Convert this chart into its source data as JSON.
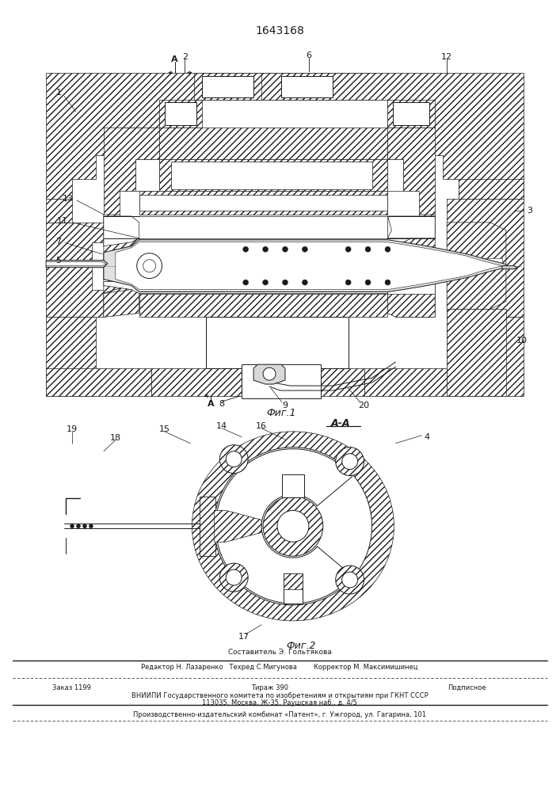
{
  "patent_number": "1643168",
  "bg_color": "#ffffff",
  "lc": "#1a1a1a",
  "fig1_label": "Фиг.1",
  "fig2_label": "Фиг.2",
  "section_label": "А-А",
  "footer": [
    "Составитель Э. Гольтякова",
    "Редактор Н. Лазаренко   Техред С.Мигунова        Корректор М. Максимишинец",
    "Заказ 1199",
    "Тираж 390",
    "Подписное",
    "ВНИИПИ Государственного комитета по изобретениям и открытиям при ГКНТ СССР",
    "113035, Москва, Ж-35, Раушская наб., д. 4/5",
    "Производственно-издательский комбинат «Патент», г. Ужгород, ул. Гагарина, 101"
  ]
}
